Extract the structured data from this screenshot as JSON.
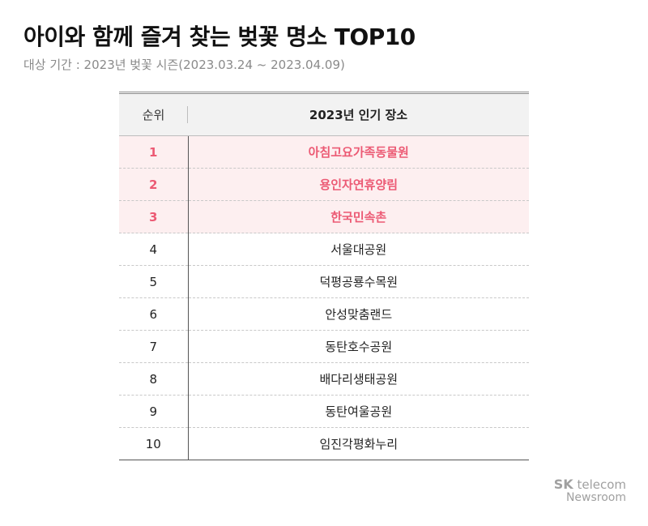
{
  "title": "아이와 함께 즐겨 찾는 벚꽃 명소 TOP10",
  "subtitle": "대상 기간 : 2023년 벚꽃 시즌(2023.03.24 ~ 2023.04.09)",
  "table": {
    "headers": {
      "rank": "순위",
      "place": "2023년 인기 장소"
    },
    "highlight_color": "#ec5a74",
    "highlight_bg": "#fdeff0",
    "rows": [
      {
        "rank": "1",
        "place": "아침고요가족동물원",
        "highlight": true
      },
      {
        "rank": "2",
        "place": "용인자연휴양림",
        "highlight": true
      },
      {
        "rank": "3",
        "place": "한국민속촌",
        "highlight": true
      },
      {
        "rank": "4",
        "place": "서울대공원",
        "highlight": false
      },
      {
        "rank": "5",
        "place": "덕평공룡수목원",
        "highlight": false
      },
      {
        "rank": "6",
        "place": "안성맞춤랜드",
        "highlight": false
      },
      {
        "rank": "7",
        "place": "동탄호수공원",
        "highlight": false
      },
      {
        "rank": "8",
        "place": "배다리생태공원",
        "highlight": false
      },
      {
        "rank": "9",
        "place": "동탄여울공원",
        "highlight": false
      },
      {
        "rank": "10",
        "place": "임진각평화누리",
        "highlight": false
      }
    ]
  },
  "brand": {
    "sk": "SK",
    "telecom": "telecom",
    "newsroom": "Newsroom"
  }
}
